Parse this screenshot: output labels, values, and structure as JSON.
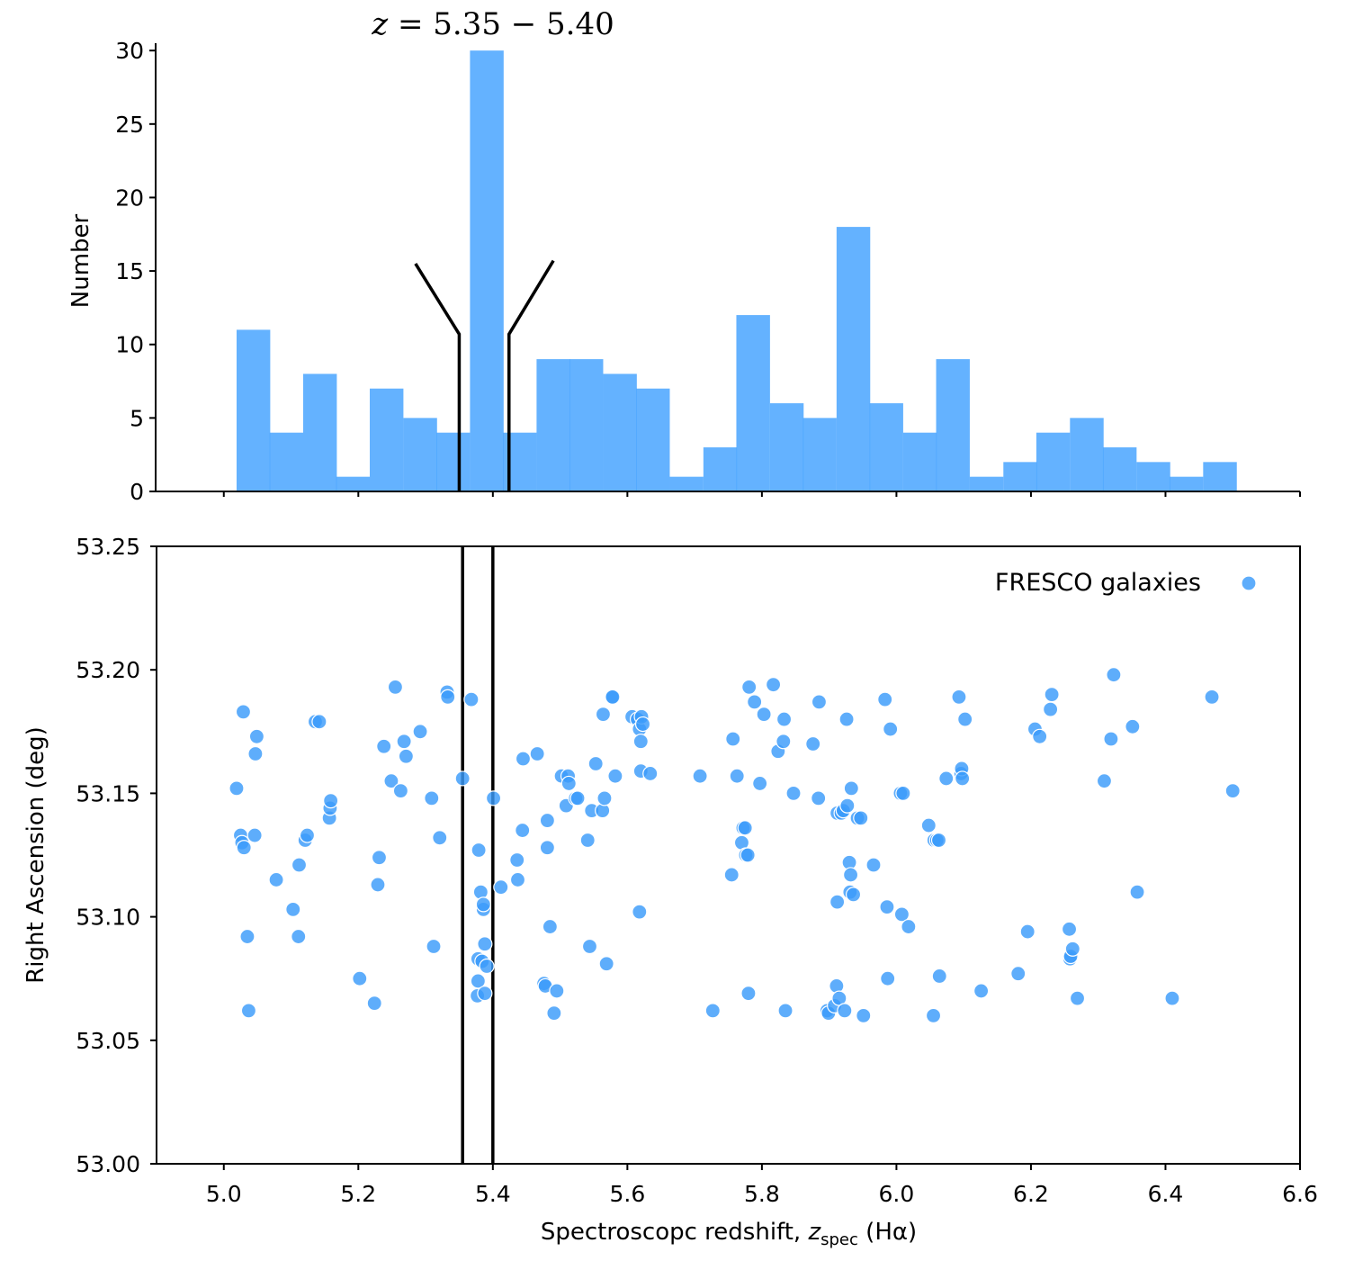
{
  "chart_data": [
    {
      "id": "histogram",
      "type": "bar",
      "title_prefix": "z",
      "title_rest": " = 5.35 − 5.40",
      "ylabel": "Number",
      "xlim": [
        4.9,
        6.6
      ],
      "ylim": [
        0,
        30.5
      ],
      "yticks": [
        0,
        5,
        10,
        15,
        20,
        25,
        30
      ],
      "xticks": [
        5.0,
        5.2,
        5.4,
        5.6,
        5.8,
        6.0,
        6.2,
        6.4,
        6.6
      ],
      "bin_width": 0.0495,
      "bin_starts": [
        5.019,
        5.068,
        5.118,
        5.167,
        5.217,
        5.267,
        5.316,
        5.366,
        5.415,
        5.465,
        5.514,
        5.564,
        5.613,
        5.663,
        5.713,
        5.762,
        5.812,
        5.861,
        5.911,
        5.96,
        6.01,
        6.059,
        6.109,
        6.159,
        6.208,
        6.258,
        6.307,
        6.357,
        6.406,
        6.456
      ],
      "values": [
        11,
        4,
        8,
        1,
        7,
        5,
        4,
        30,
        4,
        9,
        9,
        8,
        7,
        1,
        3,
        12,
        6,
        5,
        18,
        6,
        4,
        9,
        1,
        2,
        4,
        5,
        3,
        2,
        1,
        2
      ],
      "zoom_markers": {
        "left": {
          "foot_x": 5.35,
          "foot_y": 0,
          "knee_y": 10.7,
          "top_x": 5.285,
          "top_y": 15.5
        },
        "right": {
          "foot_x": 5.424,
          "foot_y": 0,
          "knee_y": 10.7,
          "top_x": 5.49,
          "top_y": 15.7
        }
      }
    },
    {
      "id": "scatter",
      "type": "scatter",
      "xlabel_main": "Spectroscopc redshift, ",
      "xlabel_var": "z",
      "xlabel_sub": "spec",
      "xlabel_tail": " (Hα)",
      "ylabel": "Right Ascension (deg)",
      "legend_label": "FRESCO galaxies",
      "legend_position": "upper-right",
      "xlim": [
        4.9,
        6.6
      ],
      "ylim": [
        53.0,
        53.25
      ],
      "xticks": [
        5.0,
        5.2,
        5.4,
        5.6,
        5.8,
        6.0,
        6.2,
        6.4,
        6.6
      ],
      "yticks": [
        53.0,
        53.05,
        53.1,
        53.15,
        53.2,
        53.25
      ],
      "vlines": [
        5.355,
        5.4
      ],
      "points": [
        [
          5.019,
          53.152
        ],
        [
          5.025,
          53.133
        ],
        [
          5.027,
          53.13
        ],
        [
          5.03,
          53.128
        ],
        [
          5.029,
          53.183
        ],
        [
          5.035,
          53.092
        ],
        [
          5.037,
          53.062
        ],
        [
          5.046,
          53.133
        ],
        [
          5.047,
          53.166
        ],
        [
          5.049,
          53.173
        ],
        [
          5.078,
          53.115
        ],
        [
          5.103,
          53.103
        ],
        [
          5.111,
          53.092
        ],
        [
          5.112,
          53.121
        ],
        [
          5.121,
          53.131
        ],
        [
          5.124,
          53.133
        ],
        [
          5.136,
          53.179
        ],
        [
          5.142,
          53.179
        ],
        [
          5.157,
          53.14
        ],
        [
          5.158,
          53.144
        ],
        [
          5.159,
          53.147
        ],
        [
          5.202,
          53.075
        ],
        [
          5.224,
          53.065
        ],
        [
          5.229,
          53.113
        ],
        [
          5.231,
          53.124
        ],
        [
          5.238,
          53.169
        ],
        [
          5.249,
          53.155
        ],
        [
          5.255,
          53.193
        ],
        [
          5.263,
          53.151
        ],
        [
          5.268,
          53.171
        ],
        [
          5.271,
          53.165
        ],
        [
          5.292,
          53.175
        ],
        [
          5.309,
          53.148
        ],
        [
          5.312,
          53.088
        ],
        [
          5.321,
          53.132
        ],
        [
          5.332,
          53.191
        ],
        [
          5.333,
          53.189
        ],
        [
          5.355,
          53.156
        ],
        [
          5.368,
          53.188
        ],
        [
          5.377,
          53.068
        ],
        [
          5.378,
          53.074
        ],
        [
          5.378,
          53.083
        ],
        [
          5.379,
          53.127
        ],
        [
          5.382,
          53.11
        ],
        [
          5.384,
          53.082
        ],
        [
          5.386,
          53.103
        ],
        [
          5.386,
          53.105
        ],
        [
          5.388,
          53.089
        ],
        [
          5.388,
          53.069
        ],
        [
          5.391,
          53.08
        ],
        [
          5.401,
          53.148
        ],
        [
          5.412,
          53.112
        ],
        [
          5.436,
          53.123
        ],
        [
          5.437,
          53.115
        ],
        [
          5.444,
          53.135
        ],
        [
          5.445,
          53.164
        ],
        [
          5.466,
          53.166
        ],
        [
          5.476,
          53.073
        ],
        [
          5.478,
          53.072
        ],
        [
          5.481,
          53.128
        ],
        [
          5.481,
          53.139
        ],
        [
          5.485,
          53.096
        ],
        [
          5.491,
          53.061
        ],
        [
          5.495,
          53.07
        ],
        [
          5.502,
          53.157
        ],
        [
          5.509,
          53.145
        ],
        [
          5.512,
          53.157
        ],
        [
          5.513,
          53.154
        ],
        [
          5.523,
          53.148
        ],
        [
          5.526,
          53.148
        ],
        [
          5.541,
          53.131
        ],
        [
          5.544,
          53.088
        ],
        [
          5.547,
          53.143
        ],
        [
          5.553,
          53.162
        ],
        [
          5.563,
          53.143
        ],
        [
          5.564,
          53.182
        ],
        [
          5.566,
          53.148
        ],
        [
          5.569,
          53.081
        ],
        [
          5.577,
          53.189
        ],
        [
          5.578,
          53.189
        ],
        [
          5.582,
          53.157
        ],
        [
          5.607,
          53.181
        ],
        [
          5.615,
          53.18
        ],
        [
          5.618,
          53.102
        ],
        [
          5.618,
          53.176
        ],
        [
          5.62,
          53.171
        ],
        [
          5.62,
          53.159
        ],
        [
          5.621,
          53.181
        ],
        [
          5.623,
          53.178
        ],
        [
          5.634,
          53.158
        ],
        [
          5.708,
          53.157
        ],
        [
          5.727,
          53.062
        ],
        [
          5.755,
          53.117
        ],
        [
          5.757,
          53.172
        ],
        [
          5.763,
          53.157
        ],
        [
          5.77,
          53.13
        ],
        [
          5.772,
          53.136
        ],
        [
          5.775,
          53.136
        ],
        [
          5.776,
          53.125
        ],
        [
          5.779,
          53.125
        ],
        [
          5.78,
          53.069
        ],
        [
          5.781,
          53.193
        ],
        [
          5.789,
          53.187
        ],
        [
          5.797,
          53.154
        ],
        [
          5.803,
          53.182
        ],
        [
          5.817,
          53.194
        ],
        [
          5.824,
          53.167
        ],
        [
          5.832,
          53.171
        ],
        [
          5.833,
          53.18
        ],
        [
          5.835,
          53.062
        ],
        [
          5.847,
          53.15
        ],
        [
          5.876,
          53.17
        ],
        [
          5.884,
          53.148
        ],
        [
          5.885,
          53.187
        ],
        [
          5.897,
          53.062
        ],
        [
          5.899,
          53.061
        ],
        [
          5.908,
          53.064
        ],
        [
          5.911,
          53.072
        ],
        [
          5.912,
          53.142
        ],
        [
          5.912,
          53.106
        ],
        [
          5.915,
          53.067
        ],
        [
          5.918,
          53.142
        ],
        [
          5.921,
          53.143
        ],
        [
          5.923,
          53.062
        ],
        [
          5.926,
          53.18
        ],
        [
          5.927,
          53.145
        ],
        [
          5.93,
          53.122
        ],
        [
          5.931,
          53.11
        ],
        [
          5.932,
          53.117
        ],
        [
          5.933,
          53.152
        ],
        [
          5.936,
          53.109
        ],
        [
          5.942,
          53.14
        ],
        [
          5.947,
          53.14
        ],
        [
          5.951,
          53.06
        ],
        [
          5.966,
          53.121
        ],
        [
          5.983,
          53.188
        ],
        [
          5.986,
          53.104
        ],
        [
          5.987,
          53.075
        ],
        [
          5.991,
          53.176
        ],
        [
          6.006,
          53.15
        ],
        [
          6.008,
          53.101
        ],
        [
          6.01,
          53.15
        ],
        [
          6.018,
          53.096
        ],
        [
          6.048,
          53.137
        ],
        [
          6.055,
          53.06
        ],
        [
          6.056,
          53.131
        ],
        [
          6.06,
          53.131
        ],
        [
          6.063,
          53.131
        ],
        [
          6.064,
          53.076
        ],
        [
          6.074,
          53.156
        ],
        [
          6.093,
          53.189
        ],
        [
          6.096,
          53.158
        ],
        [
          6.097,
          53.16
        ],
        [
          6.098,
          53.156
        ],
        [
          6.102,
          53.18
        ],
        [
          6.126,
          53.07
        ],
        [
          6.181,
          53.077
        ],
        [
          6.195,
          53.094
        ],
        [
          6.206,
          53.176
        ],
        [
          6.213,
          53.173
        ],
        [
          6.229,
          53.184
        ],
        [
          6.231,
          53.19
        ],
        [
          6.257,
          53.095
        ],
        [
          6.258,
          53.083
        ],
        [
          6.259,
          53.084
        ],
        [
          6.262,
          53.087
        ],
        [
          6.269,
          53.067
        ],
        [
          6.309,
          53.155
        ],
        [
          6.319,
          53.172
        ],
        [
          6.323,
          53.198
        ],
        [
          6.351,
          53.177
        ],
        [
          6.358,
          53.11
        ],
        [
          6.41,
          53.067
        ],
        [
          6.469,
          53.189
        ],
        [
          6.5,
          53.151
        ]
      ]
    }
  ]
}
